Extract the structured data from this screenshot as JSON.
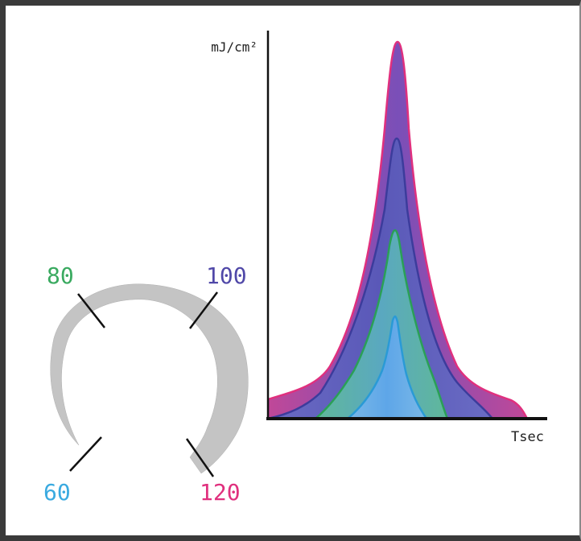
{
  "axis": {
    "y_label": "mJ/cm²",
    "x_label": "Tsec"
  },
  "curves": [
    {
      "key": "120",
      "color": "#e0307e"
    },
    {
      "key": "100",
      "color": "#3c3c9c"
    },
    {
      "key": "80",
      "color": "#2aa056"
    },
    {
      "key": "60",
      "color": "#2a9ad6"
    }
  ],
  "dial": {
    "labels": [
      {
        "text": "80",
        "color": "#3aaa60"
      },
      {
        "text": "100",
        "color": "#5048a8"
      },
      {
        "text": "60",
        "color": "#3aaae0"
      },
      {
        "text": "120",
        "color": "#e0307e"
      }
    ],
    "arc_color": "#c4c4c4"
  }
}
